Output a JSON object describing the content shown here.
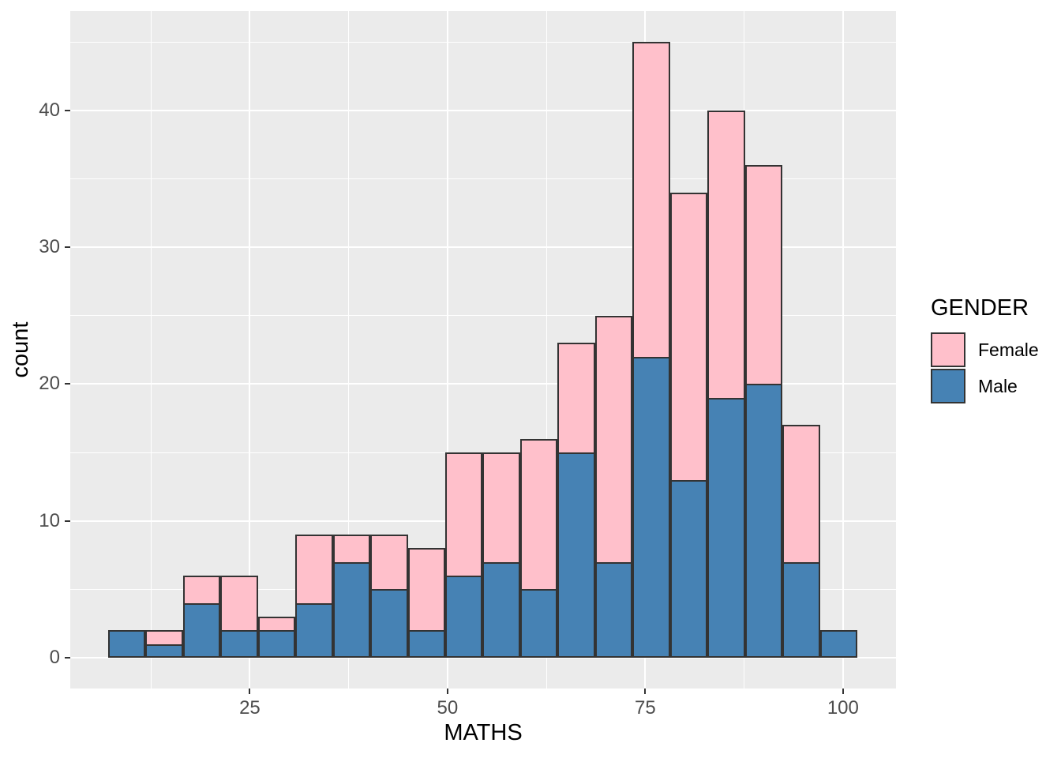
{
  "chart_data": {
    "type": "bar",
    "subtype": "stacked-histogram",
    "title": "",
    "xlabel": "MATHS",
    "ylabel": "count",
    "bin_start": 7.05,
    "bin_width": 4.74,
    "series": [
      {
        "name": "Male",
        "color": "#4682B4",
        "values": [
          2,
          1,
          4,
          2,
          2,
          4,
          7,
          5,
          2,
          6,
          7,
          5,
          15,
          7,
          22,
          13,
          19,
          20,
          7,
          2
        ]
      },
      {
        "name": "Female",
        "color": "#FFC0CB",
        "values": [
          0,
          1,
          2,
          4,
          1,
          5,
          2,
          4,
          6,
          9,
          8,
          11,
          8,
          18,
          23,
          21,
          21,
          16,
          10,
          0
        ]
      }
    ],
    "stack_order_bottom_to_top": [
      "Male",
      "Female"
    ],
    "totals": [
      2,
      2,
      6,
      6,
      3,
      9,
      9,
      9,
      8,
      15,
      15,
      16,
      23,
      25,
      45,
      34,
      40,
      36,
      17,
      2
    ],
    "xlim": [
      2.3,
      106.7
    ],
    "ylim": [
      -2.25,
      47.25
    ],
    "x_ticks": [
      25,
      50,
      75,
      100
    ],
    "x_minor_gridlines": [
      12.5,
      37.5,
      62.5,
      87.5
    ],
    "y_ticks": [
      0,
      10,
      20,
      30,
      40
    ],
    "y_minor_gridlines": [
      5,
      15,
      25,
      35,
      45
    ],
    "grid": true,
    "legend": {
      "title": "GENDER",
      "position": "right",
      "items": [
        {
          "label": "Female",
          "color": "#FFC0CB"
        },
        {
          "label": "Male",
          "color": "#4682B4"
        }
      ]
    },
    "colors": {
      "panel_background": "#EBEBEB",
      "gridline": "#FFFFFF",
      "bar_outline": "#333333",
      "tick_label": "#4D4D4D",
      "axis_title": "#000000",
      "tick_mark": "#333333"
    }
  }
}
